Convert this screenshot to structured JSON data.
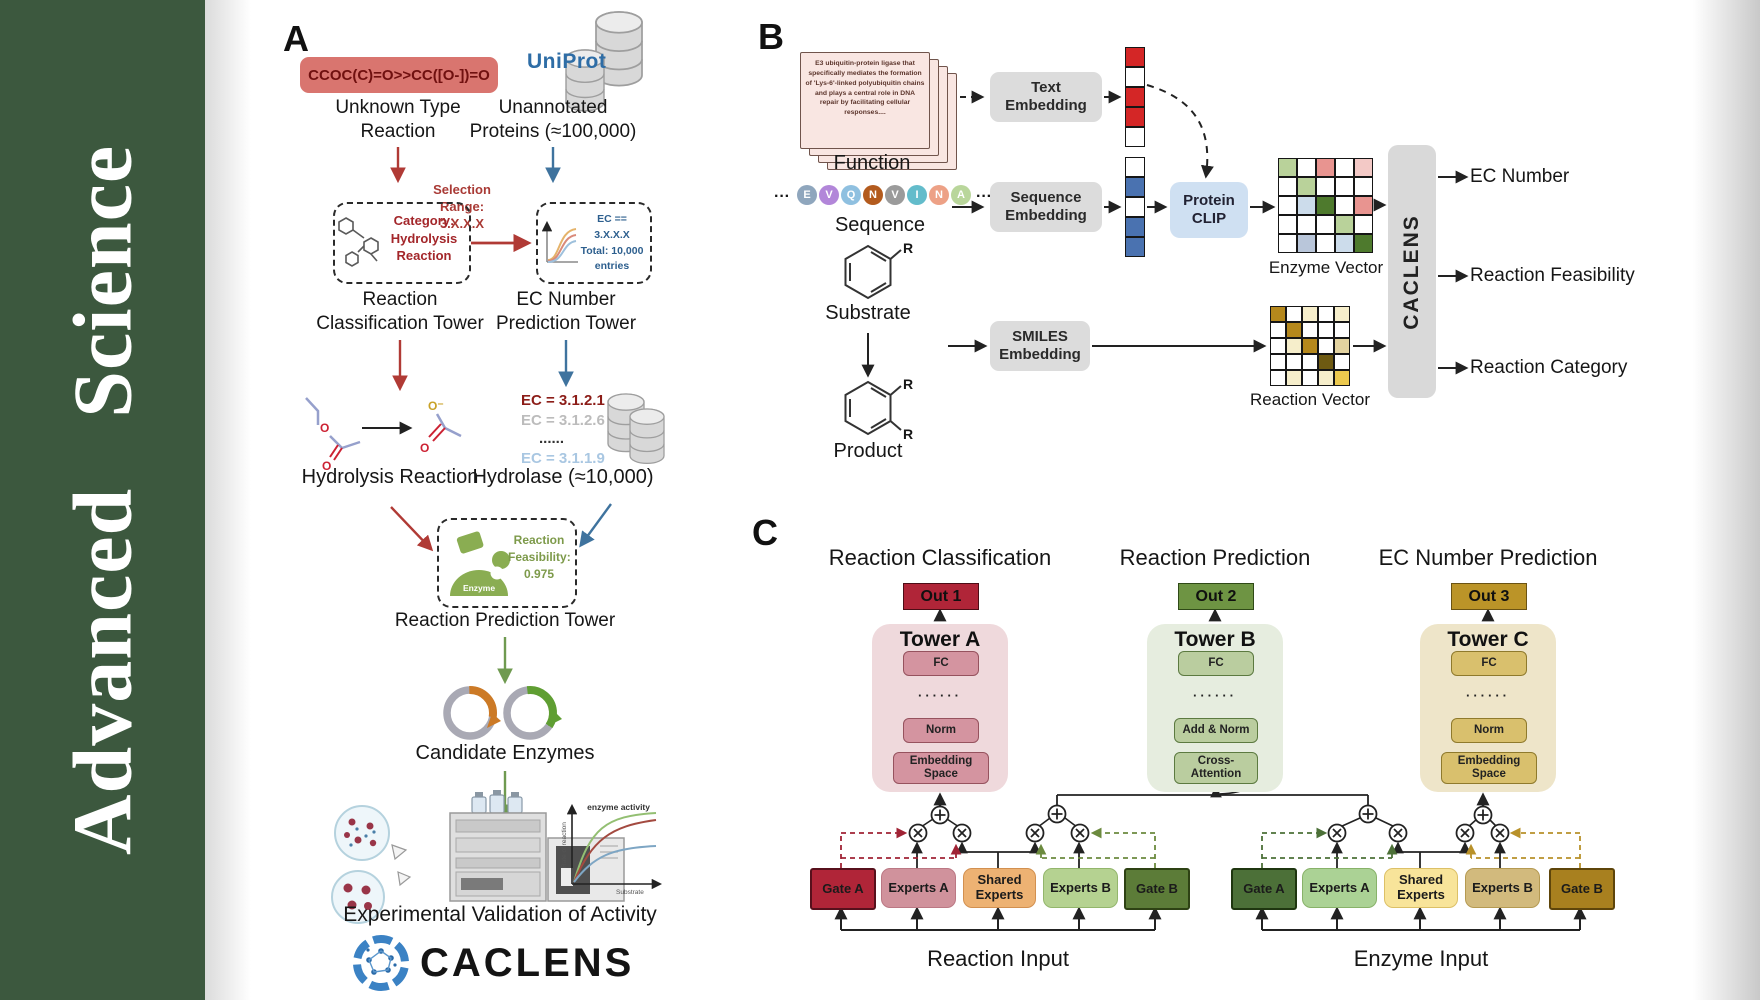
{
  "sidebar": {
    "word1": "Advanced",
    "word2": "Science"
  },
  "palette": {
    "sidebar_green": "#3c583e",
    "red_accent": "#b03a35",
    "blue_accent": "#3f739e",
    "green_accent": "#6f9a50",
    "smiles_bg": "#d9756f",
    "gray_box": "#dcdcdc",
    "clip_box": "#cfe0f2",
    "out1": "#b02538",
    "out2": "#6e9443",
    "out3": "#bb9428"
  },
  "panelA": {
    "label": "A",
    "smiles": "CCOC(C)=O>>CC([O-])=O",
    "unknown": "Unknown Type\nReaction",
    "uniprot": "UniProt",
    "unannotated": "Unannotated\nProteins (≈100,000)",
    "selection": "Selection\nRange:\n3.X.X.X",
    "category": "Category:\nHydrolysis\nReaction",
    "ec_box": "EC == 3.X.X.X\nTotal: 10,000\nentries",
    "tower1": "Reaction\nClassification Tower",
    "tower2": "EC Number\nPrediction Tower",
    "ec_list": [
      "EC = 3.1.2.1",
      "EC = 3.1.2.6",
      "......",
      "EC = 3.1.1.9"
    ],
    "hydrolysis": "Hydrolysis Reaction",
    "hydrolase": "Hydrolase (≈10,000)",
    "enzyme_icon_label": "Enzyme",
    "feasibility": "Reaction\nFeasibility:\n0.975",
    "tower3": "Reaction Prediction Tower",
    "candidates": "Candidate Enzymes",
    "validation": "Experimental Validation of Activity",
    "plot": {
      "ylabel": "Rate of reaction",
      "xlabel": "Substrate",
      "note": "enzyme activity"
    },
    "wordmark": "CACLENS"
  },
  "panelB": {
    "label": "B",
    "function_text": "E3 ubiquitin-protein ligase that specifically mediates the formation of 'Lys-6'-linked polyubiquitin chains and plays a central role in DNA repair by facilitating cellular responses....",
    "function_label": "Function",
    "ellipsis": "···",
    "residues": [
      {
        "ch": "E",
        "bg": "#8fa6bd"
      },
      {
        "ch": "V",
        "bg": "#b286d9"
      },
      {
        "ch": "Q",
        "bg": "#8fc0e0"
      },
      {
        "ch": "N",
        "bg": "#b35b1e"
      },
      {
        "ch": "V",
        "bg": "#9b9b9b"
      },
      {
        "ch": "I",
        "bg": "#63bccb"
      },
      {
        "ch": "N",
        "bg": "#eda186"
      },
      {
        "ch": "A",
        "bg": "#b9d69b"
      }
    ],
    "sequence_label": "Sequence",
    "r": "R",
    "substrate_label": "Substrate",
    "product_label": "Product",
    "text_embedding": "Text\nEmbedding",
    "sequence_embedding": "Sequence\nEmbedding",
    "smiles_embedding": "SMILES\nEmbedding",
    "protein_clip": "Protein\nCLIP",
    "text_vector": {
      "cells": [
        [
          "#d42626"
        ],
        [
          "#ffffff"
        ],
        [
          "#d42626"
        ],
        [
          "#d42626"
        ],
        [
          "#ffffff"
        ]
      ]
    },
    "seq_vector": {
      "cells": [
        [
          "#ffffff"
        ],
        [
          "#4a72b0"
        ],
        [
          "#ffffff"
        ],
        [
          "#4a72b0"
        ],
        [
          "#4a72b0"
        ]
      ]
    },
    "enzyme_vector": {
      "label": "Enzyme Vector",
      "cells": [
        [
          "#b9d29a",
          "#ffffff",
          "#e89490",
          "#ffffff",
          "#f3c9c6"
        ],
        [
          "#ffffff",
          "#b9d29a",
          "#ffffff",
          "#ffffff",
          "#ffffff"
        ],
        [
          "#ffffff",
          "#ccdceb",
          "#4e7a2d",
          "#ffffff",
          "#e89490"
        ],
        [
          "#ffffff",
          "#ffffff",
          "#ffffff",
          "#b9d29a",
          "#ffffff"
        ],
        [
          "#ffffff",
          "#b9c6da",
          "#ffffff",
          "#ccdceb",
          "#4e7a2d"
        ]
      ]
    },
    "reaction_vector": {
      "label": "Reaction Vector",
      "cells": [
        [
          "#b5881c",
          "#ffffff",
          "#f6eecb",
          "#ffffff",
          "#f6eecb"
        ],
        [
          "#ffffff",
          "#b5881c",
          "#ffffff",
          "#ffffff",
          "#ffffff"
        ],
        [
          "#ffffff",
          "#f6eecb",
          "#b5881c",
          "#ffffff",
          "#e3d3a0"
        ],
        [
          "#ffffff",
          "#ffffff",
          "#ffffff",
          "#6e5a12",
          "#ffffff"
        ],
        [
          "#ffffff",
          "#f6eecb",
          "#ffffff",
          "#f6eecb",
          "#ecc94e"
        ]
      ]
    },
    "caclens_bar": "CACLENS",
    "outputs": [
      "EC Number",
      "Reaction Feasibility",
      "Reaction Category"
    ]
  },
  "panelC": {
    "label": "C",
    "towers": [
      {
        "title": "Reaction Classification",
        "out": "Out 1",
        "name": "Tower A",
        "fc": "FC",
        "dots": "······",
        "mid": "Norm",
        "bottom": "Embedding\nSpace"
      },
      {
        "title": "Reaction Prediction",
        "out": "Out 2",
        "name": "Tower B",
        "fc": "FC",
        "dots": "······",
        "mid": "Add & Norm",
        "bottom": "Cross-\nAttention"
      },
      {
        "title": "EC Number Prediction",
        "out": "Out 3",
        "name": "Tower C",
        "fc": "FC",
        "dots": "······",
        "mid": "Norm",
        "bottom": "Embedding\nSpace"
      }
    ],
    "moe_left": {
      "gate_a": "Gate A",
      "experts_a": "Experts A",
      "shared": "Shared\nExperts",
      "experts_b": "Experts B",
      "gate_b": "Gate B",
      "input": "Reaction Input"
    },
    "moe_right": {
      "gate_a": "Gate A",
      "experts_a": "Experts A",
      "shared": "Shared\nExperts",
      "experts_b": "Experts B",
      "gate_b": "Gate B",
      "input": "Enzyme Input"
    }
  }
}
